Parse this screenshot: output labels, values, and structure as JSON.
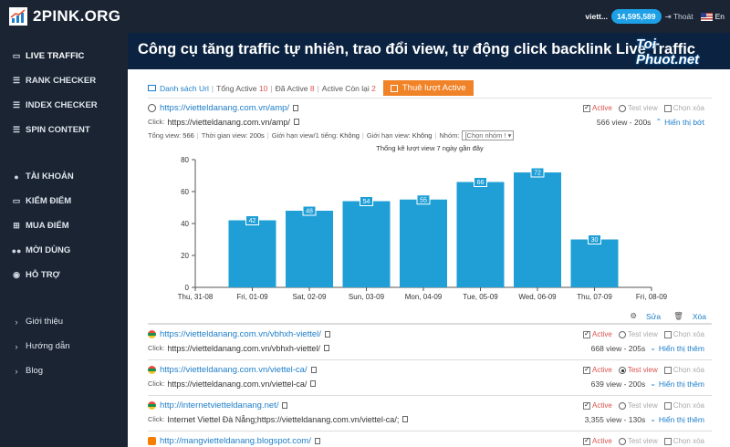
{
  "app": {
    "logo_text": "2PINK.ORG",
    "banner_title": "Công cụ tăng traffic tự nhiên, trao đổi view, tự động click backlink Live Traffic",
    "watermark": "Toi Phuot.net",
    "watermark_sub": "ToiPhuot.Net"
  },
  "header": {
    "user": "viett...",
    "balance": "14,595,589",
    "logout": "Thoát",
    "language": "En"
  },
  "sidebar": {
    "main": [
      {
        "label": "LIVE TRAFFIC",
        "icon": "chart-line-icon"
      },
      {
        "label": "RANK CHECKER",
        "icon": "list-icon"
      },
      {
        "label": "INDEX CHECKER",
        "icon": "list-icon"
      },
      {
        "label": "SPIN CONTENT",
        "icon": "list-icon"
      }
    ],
    "account": [
      {
        "label": "TÀI KHOẢN",
        "icon": "user-icon"
      },
      {
        "label": "KIẾM ĐIỂM",
        "icon": "laptop-icon"
      },
      {
        "label": "MUA ĐIỂM",
        "icon": "cart-icon"
      },
      {
        "label": "MỜI DÙNG",
        "icon": "users-icon"
      },
      {
        "label": "HỖ TRỢ",
        "icon": "comments-icon"
      }
    ],
    "footer": [
      {
        "label": "Giới thiệu"
      },
      {
        "label": "Hướng dẫn"
      },
      {
        "label": "Blog"
      }
    ]
  },
  "toolbar": {
    "list_label": "Danh sách Url",
    "total_active_label": "Tổng Active",
    "total_active_value": "10",
    "active_label": "Đã Active",
    "active_value": "8",
    "remaining_label": "Active Còn lại",
    "remaining_value": "2",
    "rent_button": "Thuê lượt Active"
  },
  "option_labels": {
    "active": "Active",
    "test": "Test view",
    "select_delete": "Chọn xóa",
    "click": "Click:"
  },
  "first_item": {
    "url": "https://vietteldanang.com.vn/amp/",
    "click": "https://vietteldanang.com.vn/amp/",
    "views": "566 view - 200s",
    "toggle": "Hiển thị bớt",
    "filters": {
      "total_view_label": "Tổng view:",
      "total_view": "566",
      "view_time_label": "Thời gian view:",
      "view_time": "200s",
      "limit_label": "Giới hạn view/1 tiếng:",
      "limit": "Không",
      "limit_ip_label": "Giới hạn view:",
      "limit_ip": "Không",
      "group_label": "Nhóm:",
      "group_placeholder": "[Chọn nhóm !"
    }
  },
  "chart_data": {
    "type": "bar",
    "title": "Thống kê lượt view 7 ngày gần đây",
    "x_ticks": [
      "Thu, 31-08",
      "Fri, 01-09",
      "Sat, 02-09",
      "Sun, 03-09",
      "Mon, 04-09",
      "Tue, 05-09",
      "Wed, 06-09",
      "Thu, 07-09",
      "Fri, 08-09"
    ],
    "categories": [
      "Fri, 01-09",
      "Sat, 02-09",
      "Sun, 03-09",
      "Mon, 04-09",
      "Tue, 05-09",
      "Wed, 06-09",
      "Thu, 07-09"
    ],
    "values": [
      42,
      48,
      54,
      55,
      66,
      72,
      30
    ],
    "ylim": [
      0,
      80
    ],
    "yticks": [
      0,
      20,
      40,
      60,
      80
    ],
    "color": "#1f9fd6",
    "grid": false
  },
  "tools": {
    "edit": "Sửa",
    "delete": "Xóa"
  },
  "items": [
    {
      "url": "https://vietteldanang.com.vn/vbhxh-viettel/",
      "click": "https://vietteldanang.com.vn/vbhxh-viettel/",
      "views": "668 view - 205s",
      "toggle": "Hiển thị thêm",
      "test": false,
      "favicon": "viettel"
    },
    {
      "url": "https://vietteldanang.com.vn/viettel-ca/",
      "click": "https://vietteldanang.com.vn/viettel-ca/",
      "views": "639 view - 200s",
      "toggle": "Hiển thị thêm",
      "test": true,
      "favicon": "viettel"
    },
    {
      "url": "http://internetvietteldanang.net/",
      "click": "Internet Viettel Đà Nẵng;https://vietteldanang.com.vn/viettel-ca/;",
      "views": "3,355 view - 130s",
      "toggle": "Hiển thị thêm",
      "test": false,
      "favicon": "viettel"
    },
    {
      "url": "http://mangvietteldanang.blogspot.com/",
      "click": "",
      "views": "",
      "toggle": "",
      "test": false,
      "favicon": "blogger"
    }
  ]
}
